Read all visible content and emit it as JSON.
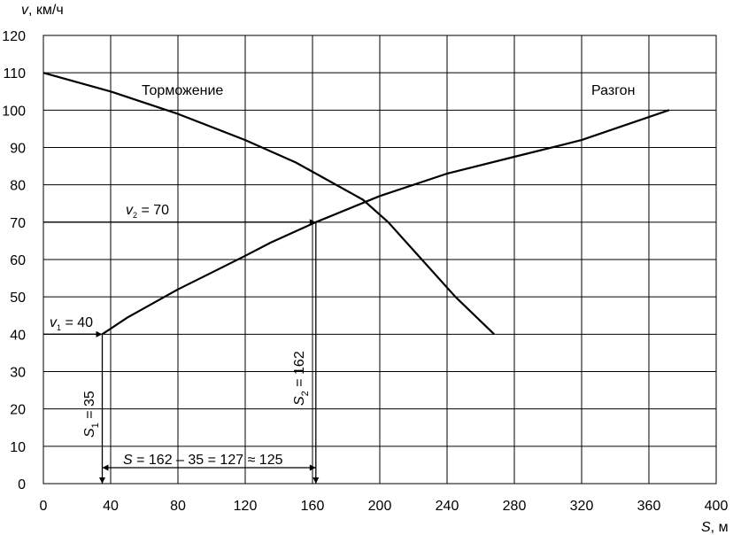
{
  "chart_data": {
    "type": "line",
    "xlabel_var": "S",
    "xlabel_unit": ", м",
    "ylabel_var": "v",
    "ylabel_unit": ", км/ч",
    "xlim": [
      0,
      400
    ],
    "ylim": [
      0,
      120
    ],
    "xticks": [
      0,
      40,
      80,
      120,
      160,
      200,
      240,
      280,
      320,
      360,
      400
    ],
    "yticks": [
      0,
      10,
      20,
      30,
      40,
      50,
      60,
      70,
      80,
      90,
      100,
      110,
      120
    ],
    "grid": true,
    "series": [
      {
        "name": "Торможение",
        "points": [
          [
            0,
            110
          ],
          [
            40,
            105
          ],
          [
            80,
            99
          ],
          [
            120,
            92
          ],
          [
            150,
            86
          ],
          [
            170,
            81
          ],
          [
            190,
            76
          ],
          [
            205,
            70
          ],
          [
            225,
            60
          ],
          [
            245,
            50
          ],
          [
            268,
            40
          ]
        ]
      },
      {
        "name": "Разгон",
        "points": [
          [
            35,
            40
          ],
          [
            50,
            44.5
          ],
          [
            80,
            52
          ],
          [
            100,
            56.5
          ],
          [
            120,
            61
          ],
          [
            135,
            64.5
          ],
          [
            162,
            70
          ],
          [
            200,
            77
          ],
          [
            240,
            83
          ],
          [
            280,
            87.5
          ],
          [
            320,
            92
          ],
          [
            372,
            100
          ]
        ]
      }
    ],
    "annotations": {
      "v1": {
        "var": "v",
        "sub": "1",
        "text": " = 40",
        "value": 40
      },
      "v2": {
        "var": "v",
        "sub": "2",
        "text": " = 70",
        "value": 70
      },
      "s1": {
        "var": "S",
        "sub": "1",
        "text": " = 35",
        "value": 35
      },
      "s2": {
        "var": "S",
        "sub": "2",
        "text": " = 162",
        "value": 162
      },
      "ds": {
        "var": "S",
        "text": " = 162 – 35 = 127 ≈ 125",
        "from": 35,
        "to": 162
      }
    }
  }
}
